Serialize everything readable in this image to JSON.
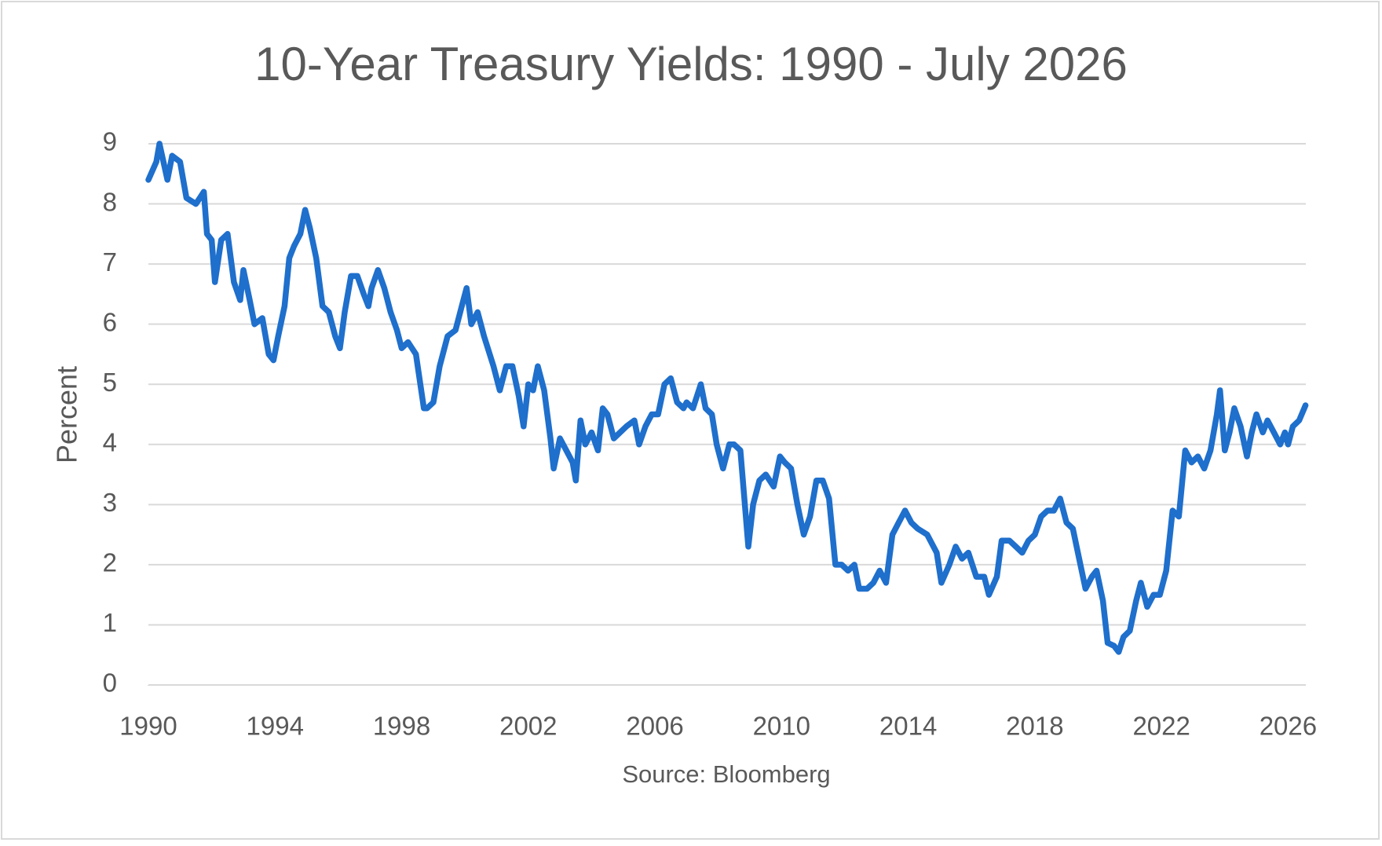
{
  "chart_data": {
    "type": "line",
    "title": "10-Year Treasury Yields: 1990 - July 2026",
    "y_label": "Percent",
    "source": "Source: Bloomberg",
    "xlim": [
      1990,
      2026.56
    ],
    "xticks": [
      1990,
      1994,
      1998,
      2002,
      2006,
      2010,
      2014,
      2018,
      2022,
      2026
    ],
    "ylim": [
      0,
      9
    ],
    "yticks": [
      0,
      1,
      2,
      3,
      4,
      5,
      6,
      7,
      8,
      9
    ],
    "grid": true,
    "x": [
      1990.0,
      1990.25,
      1990.35,
      1990.6,
      1990.75,
      1991.0,
      1991.2,
      1991.5,
      1991.75,
      1991.85,
      1992.0,
      1992.1,
      1992.3,
      1992.5,
      1992.7,
      1992.9,
      1993.0,
      1993.2,
      1993.35,
      1993.6,
      1993.8,
      1993.95,
      1994.1,
      1994.3,
      1994.45,
      1994.6,
      1994.8,
      1994.95,
      1995.1,
      1995.3,
      1995.5,
      1995.7,
      1995.9,
      1996.05,
      1996.2,
      1996.4,
      1996.6,
      1996.8,
      1996.95,
      1997.05,
      1997.25,
      1997.45,
      1997.65,
      1997.85,
      1998.0,
      1998.2,
      1998.45,
      1998.7,
      1998.8,
      1999.0,
      1999.2,
      1999.45,
      1999.7,
      1999.9,
      2000.05,
      2000.2,
      2000.4,
      2000.6,
      2000.9,
      2001.1,
      2001.3,
      2001.5,
      2001.7,
      2001.85,
      2002.0,
      2002.15,
      2002.3,
      2002.5,
      2002.7,
      2002.8,
      2003.0,
      2003.2,
      2003.4,
      2003.5,
      2003.65,
      2003.8,
      2004.0,
      2004.2,
      2004.35,
      2004.5,
      2004.7,
      2004.9,
      2005.1,
      2005.35,
      2005.5,
      2005.7,
      2005.9,
      2006.1,
      2006.3,
      2006.5,
      2006.7,
      2006.9,
      2007.0,
      2007.2,
      2007.45,
      2007.6,
      2007.8,
      2007.95,
      2008.15,
      2008.35,
      2008.5,
      2008.7,
      2008.95,
      2009.1,
      2009.3,
      2009.5,
      2009.75,
      2009.95,
      2010.1,
      2010.3,
      2010.5,
      2010.7,
      2010.9,
      2011.1,
      2011.3,
      2011.5,
      2011.7,
      2011.9,
      2012.1,
      2012.3,
      2012.45,
      2012.7,
      2012.9,
      2013.1,
      2013.3,
      2013.5,
      2013.7,
      2013.9,
      2014.1,
      2014.3,
      2014.6,
      2014.9,
      2015.05,
      2015.3,
      2015.5,
      2015.7,
      2015.9,
      2016.15,
      2016.4,
      2016.55,
      2016.8,
      2016.95,
      2017.2,
      2017.4,
      2017.6,
      2017.8,
      2018.0,
      2018.2,
      2018.4,
      2018.6,
      2018.8,
      2019.0,
      2019.2,
      2019.4,
      2019.6,
      2019.8,
      2019.95,
      2020.15,
      2020.3,
      2020.5,
      2020.65,
      2020.8,
      2021.0,
      2021.2,
      2021.35,
      2021.55,
      2021.75,
      2021.95,
      2022.15,
      2022.35,
      2022.55,
      2022.75,
      2022.95,
      2023.15,
      2023.35,
      2023.55,
      2023.75,
      2023.85,
      2024.0,
      2024.15,
      2024.3,
      2024.5,
      2024.7,
      2024.85,
      2025.0,
      2025.2,
      2025.35,
      2025.55,
      2025.75,
      2025.9,
      2026.0,
      2026.15,
      2026.35,
      2026.55
    ],
    "series": [
      {
        "name": "10-Year Treasury Yield",
        "color": "#1f6fcc",
        "values": [
          8.4,
          8.7,
          9.0,
          8.4,
          8.8,
          8.7,
          8.1,
          8.0,
          8.2,
          7.5,
          7.4,
          6.7,
          7.4,
          7.5,
          6.7,
          6.4,
          6.9,
          6.4,
          6.0,
          6.1,
          5.5,
          5.4,
          5.8,
          6.3,
          7.1,
          7.3,
          7.5,
          7.9,
          7.6,
          7.1,
          6.3,
          6.2,
          5.8,
          5.6,
          6.2,
          6.8,
          6.8,
          6.5,
          6.3,
          6.6,
          6.9,
          6.6,
          6.2,
          5.9,
          5.6,
          5.7,
          5.5,
          4.6,
          4.6,
          4.7,
          5.3,
          5.8,
          5.9,
          6.3,
          6.6,
          6.0,
          6.2,
          5.8,
          5.3,
          4.9,
          5.3,
          5.3,
          4.8,
          4.3,
          5.0,
          4.9,
          5.3,
          4.9,
          4.1,
          3.6,
          4.1,
          3.9,
          3.7,
          3.4,
          4.4,
          4.0,
          4.2,
          3.9,
          4.6,
          4.5,
          4.1,
          4.2,
          4.3,
          4.4,
          4.0,
          4.3,
          4.5,
          4.5,
          5.0,
          5.1,
          4.7,
          4.6,
          4.7,
          4.6,
          5.0,
          4.6,
          4.5,
          4.0,
          3.6,
          4.0,
          4.0,
          3.9,
          2.3,
          3.0,
          3.4,
          3.5,
          3.3,
          3.8,
          3.7,
          3.6,
          3.0,
          2.5,
          2.8,
          3.4,
          3.4,
          3.1,
          2.0,
          2.0,
          1.9,
          2.0,
          1.6,
          1.6,
          1.7,
          1.9,
          1.7,
          2.5,
          2.7,
          2.9,
          2.7,
          2.6,
          2.5,
          2.2,
          1.7,
          2.0,
          2.3,
          2.1,
          2.2,
          1.8,
          1.8,
          1.5,
          1.8,
          2.4,
          2.4,
          2.3,
          2.2,
          2.4,
          2.5,
          2.8,
          2.9,
          2.9,
          3.1,
          2.7,
          2.6,
          2.1,
          1.6,
          1.8,
          1.9,
          1.4,
          0.7,
          0.65,
          0.55,
          0.8,
          0.9,
          1.4,
          1.7,
          1.3,
          1.5,
          1.5,
          1.9,
          2.9,
          2.8,
          3.9,
          3.7,
          3.8,
          3.6,
          3.9,
          4.5,
          4.9,
          3.9,
          4.2,
          4.6,
          4.3,
          3.8,
          4.2,
          4.5,
          4.2,
          4.4,
          4.2,
          4.0,
          4.2,
          4.0,
          4.3,
          4.4,
          4.65
        ]
      }
    ]
  }
}
